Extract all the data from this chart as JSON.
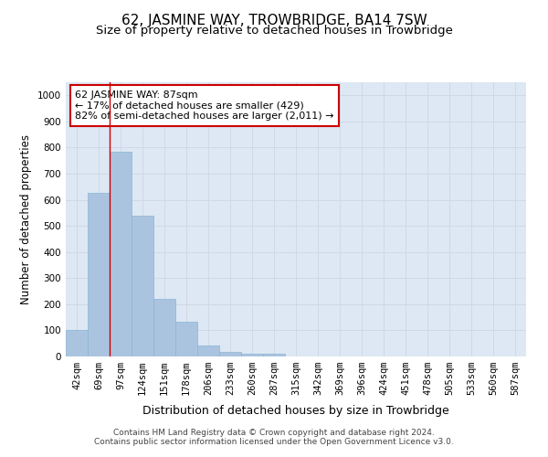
{
  "title": "62, JASMINE WAY, TROWBRIDGE, BA14 7SW",
  "subtitle": "Size of property relative to detached houses in Trowbridge",
  "xlabel": "Distribution of detached houses by size in Trowbridge",
  "ylabel": "Number of detached properties",
  "categories": [
    "42sqm",
    "69sqm",
    "97sqm",
    "124sqm",
    "151sqm",
    "178sqm",
    "206sqm",
    "233sqm",
    "260sqm",
    "287sqm",
    "315sqm",
    "342sqm",
    "369sqm",
    "396sqm",
    "424sqm",
    "451sqm",
    "478sqm",
    "505sqm",
    "533sqm",
    "560sqm",
    "587sqm"
  ],
  "values": [
    103,
    626,
    783,
    540,
    220,
    133,
    43,
    17,
    10,
    10,
    0,
    0,
    0,
    0,
    0,
    0,
    0,
    0,
    0,
    0,
    0
  ],
  "bar_color": "#aac4e0",
  "bar_edge_color": "#8ab4d4",
  "property_line_x": 1.5,
  "annotation_text_line1": "62 JASMINE WAY: 87sqm",
  "annotation_text_line2": "← 17% of detached houses are smaller (429)",
  "annotation_text_line3": "82% of semi-detached houses are larger (2,011) →",
  "annotation_box_color": "#ffffff",
  "annotation_box_edge_color": "#cc0000",
  "ylim": [
    0,
    1050
  ],
  "yticks": [
    0,
    100,
    200,
    300,
    400,
    500,
    600,
    700,
    800,
    900,
    1000
  ],
  "title_fontsize": 11,
  "subtitle_fontsize": 9.5,
  "xlabel_fontsize": 9,
  "ylabel_fontsize": 8.5,
  "tick_fontsize": 7.5,
  "annotation_fontsize": 8,
  "grid_color": "#d0d8e4",
  "background_color": "#dde8f4",
  "fig_background": "#ffffff",
  "footer_line1": "Contains HM Land Registry data © Crown copyright and database right 2024.",
  "footer_line2": "Contains public sector information licensed under the Open Government Licence v3.0.",
  "footer_fontsize": 6.5
}
